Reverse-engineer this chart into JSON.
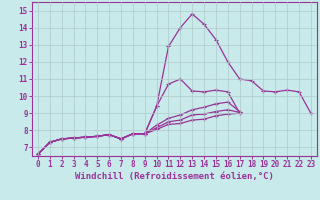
{
  "xlabel": "Windchill (Refroidissement éolien,°C)",
  "background_color": "#c8eaea",
  "line_color": "#993399",
  "grid_color": "#b0c8c8",
  "xlim": [
    -0.5,
    23.5
  ],
  "ylim": [
    6.5,
    15.5
  ],
  "xticks": [
    0,
    1,
    2,
    3,
    4,
    5,
    6,
    7,
    8,
    9,
    10,
    11,
    12,
    13,
    14,
    15,
    16,
    17,
    18,
    19,
    20,
    21,
    22,
    23
  ],
  "yticks": [
    7,
    8,
    9,
    10,
    11,
    12,
    13,
    14,
    15
  ],
  "line_configs": [
    {
      "x": [
        0,
        1,
        2,
        3,
        4,
        5,
        6,
        7,
        8,
        9,
        10,
        11,
        12,
        13,
        14,
        15,
        16,
        17
      ],
      "y": [
        6.6,
        7.3,
        7.5,
        7.55,
        7.6,
        7.65,
        7.75,
        7.5,
        7.8,
        7.8,
        9.4,
        10.7,
        11.0,
        10.3,
        10.25,
        10.35,
        10.25,
        9.0
      ]
    },
    {
      "x": [
        0,
        1,
        2,
        3,
        4,
        5,
        6,
        7,
        8,
        9,
        10,
        11,
        12,
        13,
        14,
        15,
        16,
        17,
        18,
        19,
        20,
        21,
        22,
        23
      ],
      "y": [
        6.6,
        7.3,
        7.5,
        7.55,
        7.6,
        7.65,
        7.75,
        7.5,
        7.8,
        7.8,
        9.4,
        12.9,
        14.0,
        14.8,
        14.2,
        13.3,
        12.0,
        11.0,
        10.9,
        10.3,
        10.25,
        10.35,
        10.25,
        9.0
      ]
    },
    {
      "x": [
        0,
        1,
        2,
        3,
        4,
        5,
        6,
        7,
        8,
        9,
        10,
        11,
        12,
        13,
        14,
        15,
        16,
        17
      ],
      "y": [
        6.6,
        7.3,
        7.5,
        7.55,
        7.6,
        7.65,
        7.75,
        7.5,
        7.8,
        7.8,
        8.05,
        8.35,
        8.4,
        8.6,
        8.65,
        8.85,
        8.95,
        9.0
      ]
    },
    {
      "x": [
        0,
        1,
        2,
        3,
        4,
        5,
        6,
        7,
        8,
        9,
        10,
        11,
        12,
        13,
        14,
        15,
        16,
        17
      ],
      "y": [
        6.6,
        7.3,
        7.5,
        7.55,
        7.6,
        7.65,
        7.75,
        7.5,
        7.8,
        7.8,
        8.3,
        8.7,
        8.9,
        9.2,
        9.35,
        9.55,
        9.65,
        9.1
      ]
    },
    {
      "x": [
        0,
        1,
        2,
        3,
        4,
        5,
        6,
        7,
        8,
        9,
        10,
        11,
        12,
        13,
        14,
        15,
        16,
        17
      ],
      "y": [
        6.6,
        7.3,
        7.5,
        7.55,
        7.6,
        7.65,
        7.75,
        7.5,
        7.8,
        7.8,
        8.15,
        8.5,
        8.6,
        8.9,
        8.95,
        9.1,
        9.2,
        9.05
      ]
    }
  ],
  "marker": "+",
  "markersize": 3.0,
  "linewidth": 0.9,
  "tick_fontsize": 5.5,
  "xlabel_fontsize": 6.5
}
